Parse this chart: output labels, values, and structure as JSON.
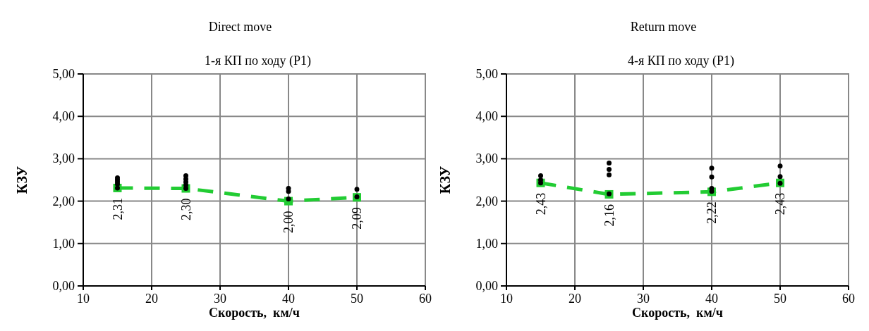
{
  "chart_data": [
    {
      "type": "line",
      "title": "Direct move",
      "subtitle": "1-я КП по ходу (P1)",
      "xlabel": "Скорость,  км/ч",
      "ylabel": "КЗУ",
      "xlim": [
        10,
        60
      ],
      "xticks": [
        10,
        20,
        30,
        40,
        50,
        60
      ],
      "ylim": [
        0,
        5
      ],
      "yticks": [
        {
          "value": 0,
          "label": "0,00"
        },
        {
          "value": 1,
          "label": "1,00"
        },
        {
          "value": 2,
          "label": "2,00"
        },
        {
          "value": 3,
          "label": "3,00"
        },
        {
          "value": 4,
          "label": "4,00"
        },
        {
          "value": 5,
          "label": "5,00"
        }
      ],
      "grid": true,
      "series": [
        {
          "type": "scatter",
          "color": "#000000",
          "marker": "circle",
          "x": [
            15,
            15,
            15,
            15,
            15,
            25,
            25,
            25,
            25,
            25,
            40,
            40,
            40,
            50,
            50
          ],
          "values": [
            2.55,
            2.5,
            2.45,
            2.4,
            2.31,
            2.6,
            2.52,
            2.45,
            2.38,
            2.3,
            2.3,
            2.23,
            2.05,
            2.28,
            2.1
          ]
        },
        {
          "color": "#22cc33",
          "marker": "square",
          "line_style": "dashed",
          "x": [
            15,
            25,
            40,
            50
          ],
          "values": [
            2.31,
            2.3,
            2.0,
            2.09
          ],
          "value_labels": [
            "2,31",
            "2,30",
            "2,00",
            "2,09"
          ]
        }
      ]
    },
    {
      "type": "line",
      "title": "Return move",
      "subtitle": "4-я КП по ходу (P1)",
      "xlabel": "Скорость,  км/ч",
      "ylabel": "КЗУ",
      "xlim": [
        10,
        60
      ],
      "xticks": [
        10,
        20,
        30,
        40,
        50,
        60
      ],
      "ylim": [
        0,
        5
      ],
      "yticks": [
        {
          "value": 0,
          "label": "0,00"
        },
        {
          "value": 1,
          "label": "1,00"
        },
        {
          "value": 2,
          "label": "2,00"
        },
        {
          "value": 3,
          "label": "3,00"
        },
        {
          "value": 4,
          "label": "4,00"
        },
        {
          "value": 5,
          "label": "5,00"
        }
      ],
      "grid": true,
      "series": [
        {
          "type": "scatter",
          "color": "#000000",
          "marker": "circle",
          "x": [
            15,
            15,
            15,
            25,
            25,
            25,
            25,
            40,
            40,
            40,
            40,
            50,
            50,
            50
          ],
          "values": [
            2.6,
            2.5,
            2.43,
            2.9,
            2.75,
            2.62,
            2.17,
            2.78,
            2.57,
            2.3,
            2.23,
            2.83,
            2.58,
            2.42
          ]
        },
        {
          "color": "#22cc33",
          "marker": "square",
          "line_style": "dashed",
          "x": [
            15,
            25,
            40,
            50
          ],
          "values": [
            2.43,
            2.16,
            2.22,
            2.43
          ],
          "value_labels": [
            "2,43",
            "2,16",
            "2,22",
            "2,43"
          ]
        }
      ]
    }
  ]
}
